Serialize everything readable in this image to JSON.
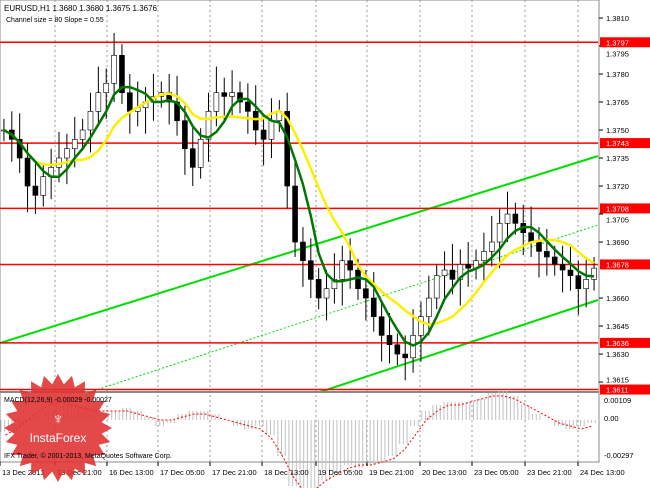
{
  "header": {
    "symbol_line": "EURUSD,H1  1.3680 1.3680 1.3675 1.3676",
    "channel_line": "Channel size = 80 Slope = 0.55"
  },
  "macd": {
    "label": "MACD(12,26,9) -0.00029 -0.00027",
    "ticks": [
      "0.00109",
      "0.00",
      "-0.00297"
    ]
  },
  "copyright": "IFX Trader, © 2001-2013, MetaQuotes Software Corp.",
  "logo": {
    "text": "InstaForex"
  },
  "colors": {
    "level": "#ff0000",
    "channel": "#00dd00",
    "ma_fast": "#007700",
    "ma_slow": "#ffee00",
    "macd_hist": "#c0c0c0",
    "macd_signal": "#ff0000"
  },
  "chart_data": {
    "type": "candlestick",
    "symbol": "EURUSD",
    "timeframe": "H1",
    "ylim": [
      1.3608,
      1.3818
    ],
    "y_ticks": [
      "1.3810",
      "1.3795",
      "1.3780",
      "1.3765",
      "1.3750",
      "1.3735",
      "1.3720",
      "1.3705",
      "1.3690",
      "1.3660",
      "1.3645",
      "1.3630",
      "1.3615"
    ],
    "x_ticks": [
      "13 Dec 2013",
      "13 Dec 21:00",
      "16 Dec 13:00",
      "17 Dec 05:00",
      "17 Dec 21:00",
      "18 Dec 13:00",
      "19 Dec 05:00",
      "19 Dec 21:00",
      "20 Dec 13:00",
      "23 Dec 05:00",
      "23 Dec 21:00",
      "24 Dec 13:00"
    ],
    "levels": [
      "1.3797",
      "1.3743",
      "1.3708",
      "1.3678",
      "1.3636",
      "1.3611"
    ],
    "current_price": "1.3676",
    "approx_close": [
      1.375,
      1.3745,
      1.3735,
      1.372,
      1.3715,
      1.3725,
      1.373,
      1.3735,
      1.374,
      1.3745,
      1.375,
      1.376,
      1.377,
      1.3775,
      1.379,
      1.377,
      1.376,
      1.3762,
      1.3765,
      1.3768,
      1.377,
      1.3765,
      1.3755,
      1.374,
      1.373,
      1.3745,
      1.376,
      1.377,
      1.3768,
      1.377,
      1.3765,
      1.376,
      1.375,
      1.3745,
      1.3755,
      1.376,
      1.372,
      1.369,
      1.368,
      1.367,
      1.366,
      1.3665,
      1.367,
      1.368,
      1.3675,
      1.3665,
      1.366,
      1.365,
      1.364,
      1.3635,
      1.363,
      1.3628,
      1.364,
      1.365,
      1.366,
      1.3672,
      1.3675,
      1.367,
      1.3678,
      1.3676,
      1.368,
      1.3685,
      1.369,
      1.37,
      1.3705,
      1.37,
      1.3695,
      1.369,
      1.3685,
      1.3682,
      1.3678,
      1.3675,
      1.3672,
      1.3665,
      1.367,
      1.3676
    ],
    "macd_hist": [
      -0.0004,
      -0.0003,
      -0.0002,
      0.0001,
      0.0003,
      0.0005,
      0.0006,
      0.0005,
      0.0004,
      0.0002,
      0.0003,
      0.0004,
      0.0003,
      0.0001,
      -0.0002,
      -0.0001,
      0.0002,
      0.0003,
      0.0003,
      0.0002,
      0.0,
      -0.0002,
      -0.0003,
      -0.0002,
      -0.0005,
      -0.0012,
      -0.0022,
      -0.0029,
      -0.0026,
      -0.002,
      -0.0017,
      -0.0015,
      -0.0016,
      -0.0015,
      -0.0014,
      -0.0012,
      -0.0008,
      -0.0002,
      0.0003,
      0.0005,
      0.0006,
      0.0006,
      0.0006,
      0.0007,
      0.0009,
      0.001,
      0.0008,
      0.0005,
      0.0002,
      0.0,
      -0.0002,
      -0.0003,
      -0.0002,
      -0.0001
    ],
    "macd_signal": [
      -0.0005,
      -0.0003,
      0.0,
      0.0003,
      0.0005,
      0.0006,
      0.0005,
      0.0004,
      0.0003,
      0.0003,
      0.0003,
      0.0003,
      0.0002,
      0.0001,
      0.0,
      0.0,
      0.0001,
      0.0002,
      0.0002,
      0.0001,
      0.0,
      -0.0001,
      -0.0002,
      -0.0003,
      -0.0006,
      -0.0012,
      -0.0019,
      -0.0024,
      -0.0023,
      -0.002,
      -0.0018,
      -0.0016,
      -0.0015,
      -0.0015,
      -0.0014,
      -0.0013,
      -0.001,
      -0.0005,
      0.0,
      0.0003,
      0.0005,
      0.0005,
      0.0006,
      0.0007,
      0.0008,
      0.0008,
      0.0007,
      0.0005,
      0.0003,
      0.0001,
      -0.0001,
      -0.0002,
      -0.0003,
      -0.0002
    ]
  }
}
